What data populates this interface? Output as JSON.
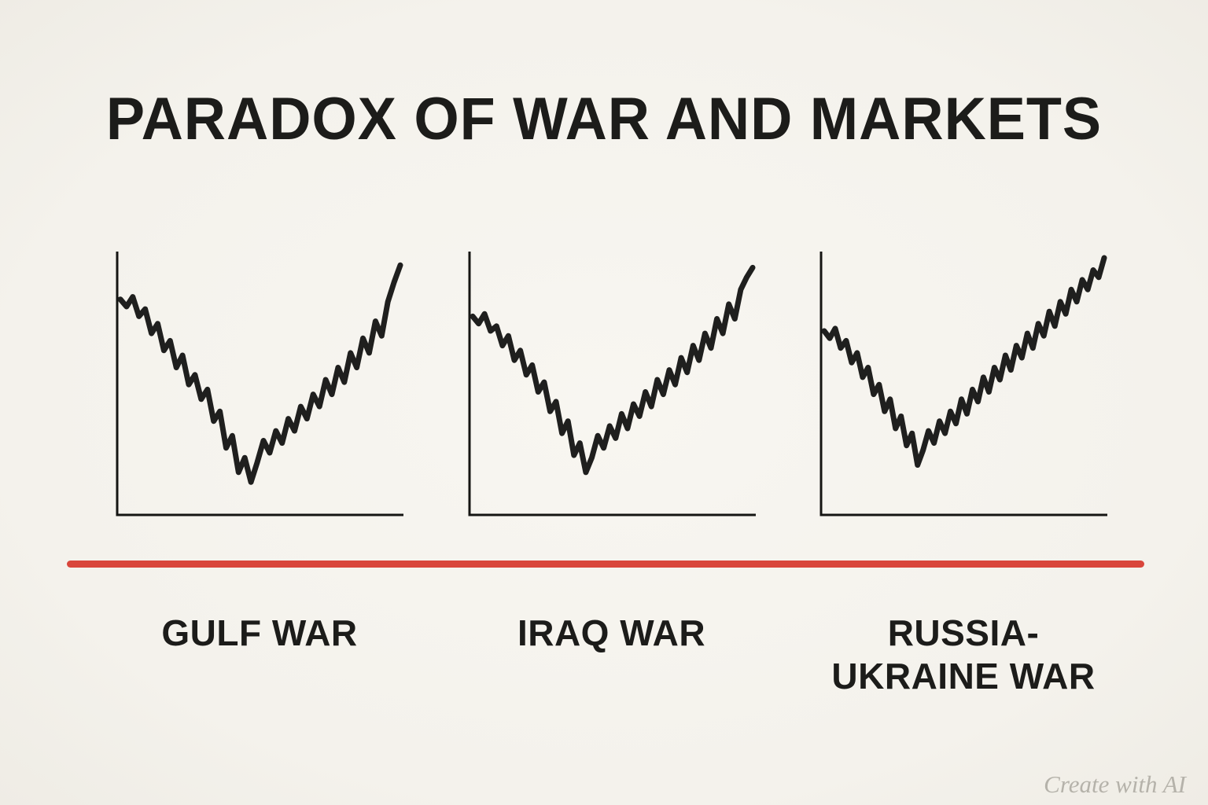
{
  "page": {
    "watermark": "Create with AI",
    "background_color": "#f6f4ef",
    "divider_color": "#d9463b",
    "text_color": "#1c1c1a"
  },
  "chart_data": {
    "type": "line",
    "title": "PARADOX OF WAR AND MARKETS",
    "ylim": [
      0,
      100
    ],
    "grid": false,
    "axes_labeled": false,
    "legend": "none",
    "line_color": "#1f1f1e",
    "axis_color": "#151513",
    "description_pattern": "Each panel shows a market index falling sharply into a trough around the onset of war, then recovering above its starting level",
    "charts": [
      {
        "label": "GULF WAR",
        "values": [
          83,
          80,
          84,
          76,
          79,
          69,
          73,
          62,
          66,
          55,
          60,
          48,
          52,
          42,
          46,
          33,
          37,
          22,
          27,
          12,
          18,
          8,
          16,
          25,
          20,
          29,
          24,
          34,
          29,
          39,
          34,
          44,
          39,
          50,
          44,
          55,
          49,
          61,
          55,
          67,
          61,
          74,
          68,
          82,
          90,
          97
        ]
      },
      {
        "label": "IRAQ WAR",
        "values": [
          76,
          73,
          77,
          70,
          72,
          64,
          68,
          58,
          62,
          52,
          56,
          45,
          49,
          37,
          41,
          28,
          33,
          19,
          24,
          12,
          18,
          27,
          22,
          31,
          26,
          36,
          30,
          40,
          35,
          45,
          39,
          50,
          44,
          54,
          48,
          59,
          53,
          64,
          58,
          69,
          63,
          75,
          69,
          81,
          75,
          87,
          92,
          96
        ]
      },
      {
        "label": "RUSSIA-UKRAINE WAR",
        "values": [
          70,
          67,
          71,
          63,
          66,
          57,
          61,
          51,
          55,
          44,
          48,
          37,
          42,
          30,
          35,
          23,
          28,
          15,
          21,
          29,
          24,
          33,
          28,
          37,
          32,
          42,
          36,
          46,
          41,
          51,
          45,
          55,
          50,
          60,
          54,
          64,
          59,
          69,
          63,
          73,
          68,
          78,
          72,
          82,
          77,
          87,
          82,
          91,
          87,
          95,
          92,
          100
        ]
      }
    ]
  }
}
